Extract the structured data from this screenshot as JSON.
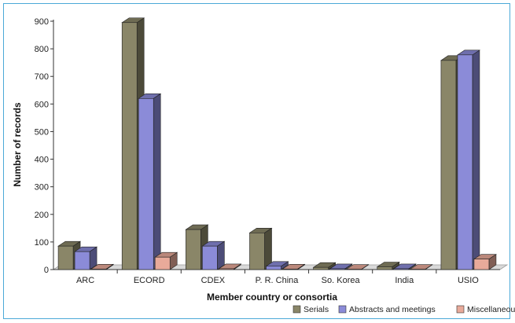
{
  "chart_data": {
    "type": "bar",
    "title": "",
    "xlabel": "Member country or consortia",
    "ylabel": "Number of records",
    "ylim": [
      0,
      900
    ],
    "yticks": [
      0,
      100,
      200,
      300,
      400,
      500,
      600,
      700,
      800,
      900
    ],
    "grid": false,
    "legend_position": "bottom-right",
    "categories": [
      "ARC",
      "ECORD",
      "CDEX",
      "P. R. China",
      "So. Korea",
      "India",
      "USIO"
    ],
    "series": [
      {
        "name": "Serials",
        "color": "#8a8668",
        "values": [
          85,
          895,
          145,
          133,
          8,
          10,
          758
        ]
      },
      {
        "name": "Abstracts and meetings",
        "color": "#8b8bd8",
        "values": [
          65,
          620,
          85,
          12,
          3,
          3,
          778
        ]
      },
      {
        "name": "Miscellaneous",
        "color": "#e8aa9a",
        "values": [
          2,
          45,
          3,
          2,
          1,
          1,
          38
        ]
      }
    ]
  }
}
